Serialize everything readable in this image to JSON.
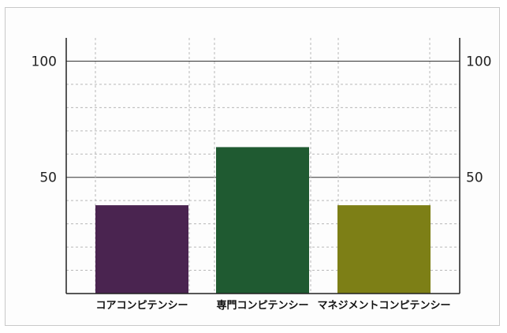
{
  "chart_data": {
    "type": "bar",
    "categories": [
      "コアコンピテンシー",
      "専門コンピテンシー",
      "マネジメントコンピテンシー"
    ],
    "values": [
      38,
      63,
      38
    ],
    "colors": [
      "#4a2450",
      "#1f5a31",
      "#7d7f16"
    ],
    "ylim": [
      0,
      110
    ],
    "y_ticks_labeled": [
      50,
      100
    ],
    "y_tick_labels": [
      "50",
      "100"
    ],
    "y_axis_left": true,
    "y_axis_right": true,
    "grid": true,
    "title": "",
    "xlabel": "",
    "ylabel": ""
  }
}
